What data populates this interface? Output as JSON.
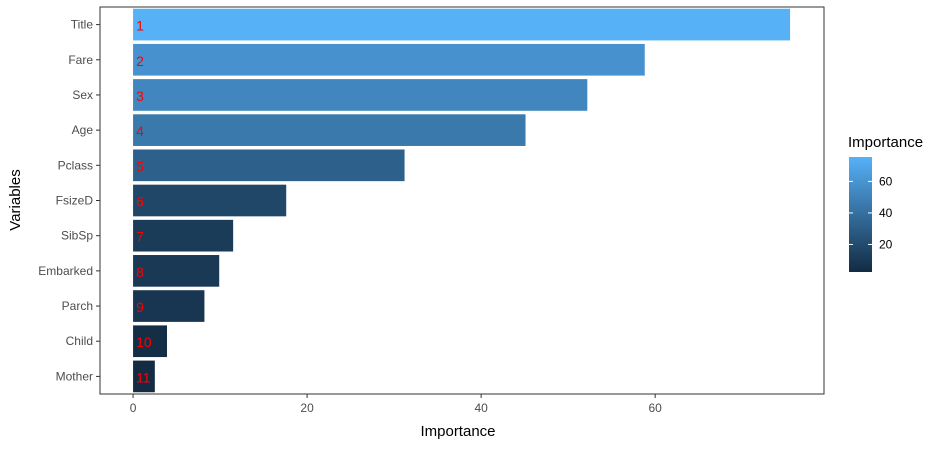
{
  "chart_data": {
    "type": "bar",
    "orientation": "horizontal",
    "categories": [
      "Title",
      "Fare",
      "Sex",
      "Age",
      "Pclass",
      "FsizeD",
      "SibSp",
      "Embarked",
      "Parch",
      "Child",
      "Mother"
    ],
    "values": [
      75.5,
      58.8,
      52.2,
      45.1,
      31.2,
      17.6,
      11.5,
      9.9,
      8.2,
      3.9,
      2.5
    ],
    "bar_labels": [
      "1",
      "2",
      "3",
      "4",
      "5",
      "6",
      "7",
      "8",
      "9",
      "10",
      "11"
    ],
    "xlabel": "Importance",
    "ylabel": "Variables",
    "xticks": [
      0,
      20,
      40,
      60
    ],
    "xlim": [
      -3.8,
      79.4
    ],
    "grid": false,
    "label_color": "#ff0000",
    "legend": {
      "title": "Importance",
      "ticks": [
        20,
        40,
        60
      ],
      "range": [
        2.5,
        75.5
      ],
      "color_low": "#132b43",
      "color_high": "#56b1f7",
      "placement": "right"
    }
  }
}
